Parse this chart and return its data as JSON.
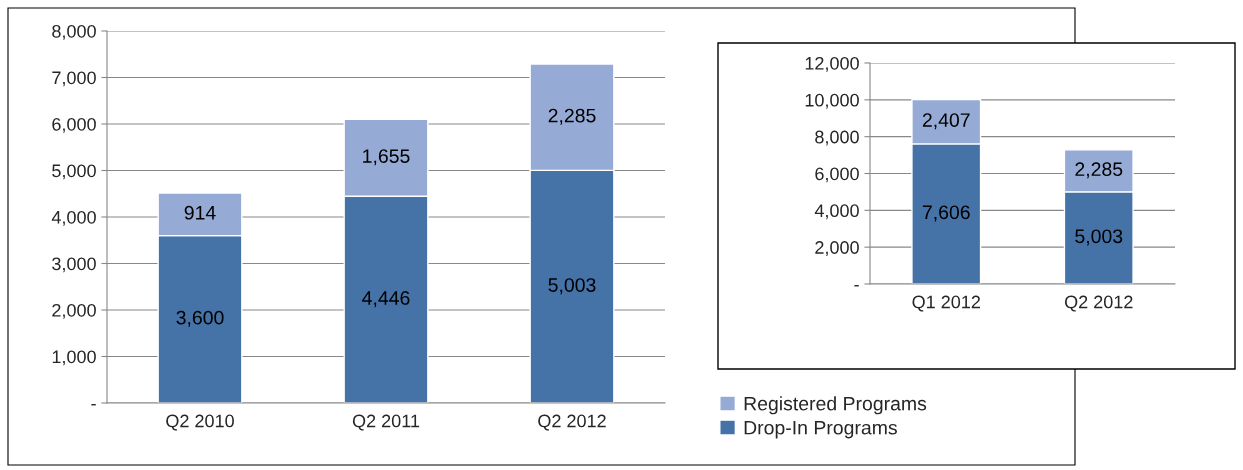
{
  "chart_data": [
    {
      "type": "bar",
      "stacked": true,
      "categories": [
        "Q2 2010",
        "Q2 2011",
        "Q2 2012"
      ],
      "series": [
        {
          "name": "Drop-In Programs",
          "color": "#4573a8",
          "values": [
            3600,
            4446,
            5003
          ],
          "value_labels": [
            "3,600",
            "4,446",
            "5,003"
          ]
        },
        {
          "name": "Registered Programs",
          "color": "#95abd5",
          "values": [
            914,
            1655,
            2285
          ],
          "value_labels": [
            "914",
            "1,655",
            "2,285"
          ]
        }
      ],
      "ylim": [
        0,
        8000
      ],
      "yticks": [
        {
          "value": 0,
          "label": "-"
        },
        {
          "value": 1000,
          "label": "1,000"
        },
        {
          "value": 2000,
          "label": "2,000"
        },
        {
          "value": 3000,
          "label": "3,000"
        },
        {
          "value": 4000,
          "label": "4,000"
        },
        {
          "value": 5000,
          "label": "5,000"
        },
        {
          "value": 6000,
          "label": "6,000"
        },
        {
          "value": 7000,
          "label": "7,000"
        },
        {
          "value": 8000,
          "label": "8,000"
        }
      ],
      "grid": "y",
      "legend": "bottom right"
    },
    {
      "type": "bar",
      "stacked": true,
      "categories": [
        "Q1 2012",
        "Q2 2012"
      ],
      "series": [
        {
          "color": "#4573a8",
          "values": [
            7606,
            5003
          ],
          "value_labels": [
            "7,606",
            "5,003"
          ]
        },
        {
          "color": "#95abd5",
          "values": [
            2407,
            2285
          ],
          "value_labels": [
            "2,407",
            "2,285"
          ]
        }
      ],
      "ylim": [
        0,
        12000
      ],
      "yticks": [
        {
          "value": 0,
          "label": "-"
        },
        {
          "value": 2000,
          "label": "2,000"
        },
        {
          "value": 4000,
          "label": "4,000"
        },
        {
          "value": 6000,
          "label": "6,000"
        },
        {
          "value": 8000,
          "label": "8,000"
        },
        {
          "value": 10000,
          "label": "10,000"
        },
        {
          "value": 12000,
          "label": "12,000"
        }
      ],
      "grid": "y"
    }
  ]
}
